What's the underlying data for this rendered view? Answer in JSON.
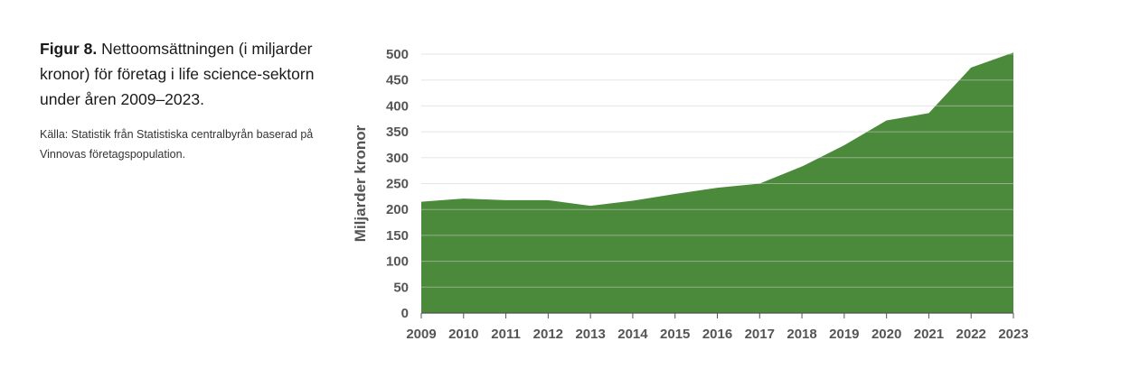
{
  "caption": {
    "figure_label": "Figur 8.",
    "title": "Nettoomsättningen (i miljarder kronor) för företag i life science-sektorn under åren 2009–2023.",
    "source": "Källa: Statistik från Statistiska centralbyrån baserad på Vinnovas företagspopulation."
  },
  "chart_data": {
    "type": "area",
    "title": "Nettoomsättningen (i miljarder kronor) för företag i life science-sektorn under åren 2009–2023.",
    "xlabel": "",
    "ylabel": "Miljarder kronor",
    "categories": [
      "2009",
      "2010",
      "2011",
      "2012",
      "2013",
      "2014",
      "2015",
      "2016",
      "2017",
      "2018",
      "2019",
      "2020",
      "2021",
      "2022",
      "2023"
    ],
    "series": [
      {
        "name": "Nettoomsättning",
        "values": [
          215,
          221,
          218,
          218,
          207,
          217,
          230,
          242,
          250,
          283,
          324,
          372,
          386,
          474,
          503
        ]
      }
    ],
    "ylim": [
      0,
      500
    ],
    "yticks": [
      0,
      50,
      100,
      150,
      200,
      250,
      300,
      350,
      400,
      450,
      500
    ],
    "grid": true,
    "colors": {
      "fill": "#4a8a3a",
      "grid": "#cfcfcf",
      "axis": "#555555"
    }
  }
}
